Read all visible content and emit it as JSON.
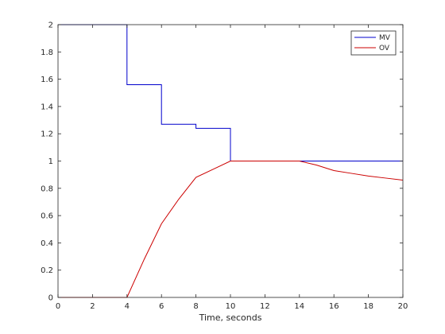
{
  "chart_data": {
    "type": "line",
    "title": "",
    "xlabel": "Time, seconds",
    "ylabel": "",
    "xlim": [
      0,
      20
    ],
    "ylim": [
      0,
      2
    ],
    "xticks": [
      "0",
      "2",
      "4",
      "6",
      "8",
      "10",
      "12",
      "14",
      "16",
      "18",
      "20"
    ],
    "yticks": [
      "0",
      "0.2",
      "0.4",
      "0.6",
      "0.8",
      "1",
      "1.2",
      "1.4",
      "1.6",
      "1.8",
      "2"
    ],
    "grid": false,
    "legend_position": "top-right",
    "series": [
      {
        "name": "MV",
        "color": "#0000cc",
        "step": true,
        "x": [
          0,
          4,
          4,
          6,
          6,
          8,
          8,
          10,
          10,
          11,
          13,
          14,
          20
        ],
        "y": [
          2,
          2,
          1.56,
          1.56,
          1.27,
          1.27,
          1.24,
          1.24,
          1.0,
          1.0,
          1.0,
          1.0,
          1.0
        ]
      },
      {
        "name": "OV",
        "color": "#cc0000",
        "step": false,
        "x": [
          0,
          4,
          5,
          6,
          7,
          8,
          9,
          10,
          11,
          12,
          13,
          14,
          15,
          16,
          17,
          18,
          19,
          20
        ],
        "y": [
          0,
          0,
          0.28,
          0.54,
          0.72,
          0.88,
          0.94,
          1.0,
          1.0,
          1.0,
          1.0,
          1.0,
          0.97,
          0.93,
          0.91,
          0.89,
          0.875,
          0.86
        ]
      }
    ]
  }
}
